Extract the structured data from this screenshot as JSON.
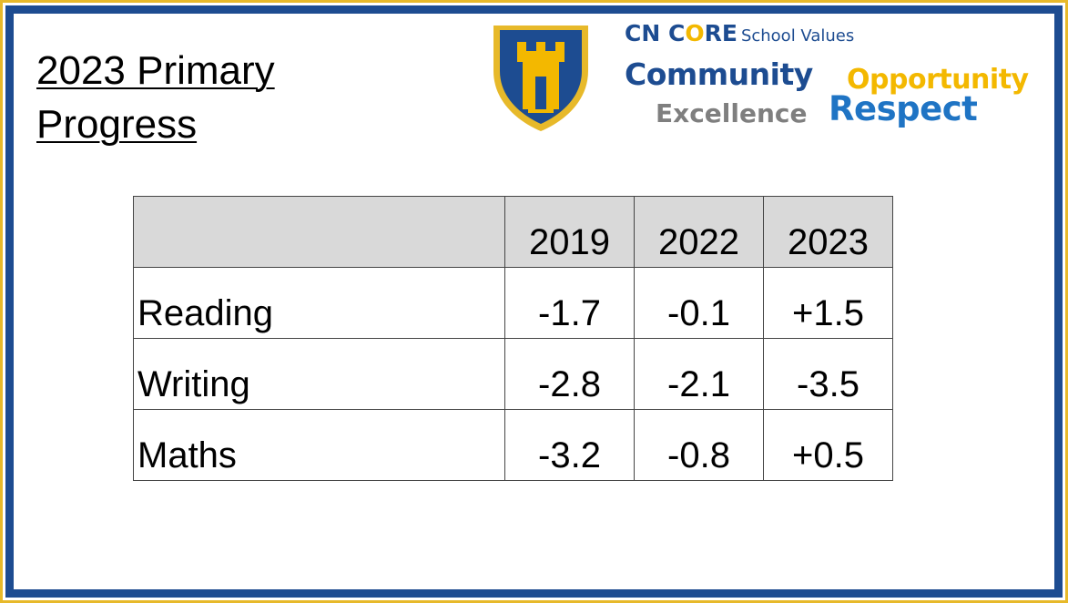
{
  "title_line1": "2023 Primary",
  "title_line2": "Progress",
  "values_header": {
    "cn": "CN ",
    "c": "C",
    "o": "O",
    "re": "RE",
    "school_values": "School Values"
  },
  "values": {
    "community": "Community",
    "opportunity": "Opportunity",
    "excellence": "Excellence",
    "respect": "Respect"
  },
  "colors": {
    "navy": "#1d4c91",
    "gold": "#f3b800",
    "grey": "#7f7f7f",
    "blue": "#1f74c4"
  },
  "crest_icon": "castle-shield-crest-icon",
  "table": {
    "columns": [
      "",
      "2019",
      "2022",
      "2023"
    ],
    "rows": [
      {
        "subject": "Reading",
        "values": [
          "-1.7",
          "-0.1",
          "+1.5"
        ]
      },
      {
        "subject": "Writing",
        "values": [
          "-2.8",
          "-2.1",
          "-3.5"
        ]
      },
      {
        "subject": "Maths",
        "values": [
          "-3.2",
          "-0.8",
          "+0.5"
        ]
      }
    ]
  }
}
